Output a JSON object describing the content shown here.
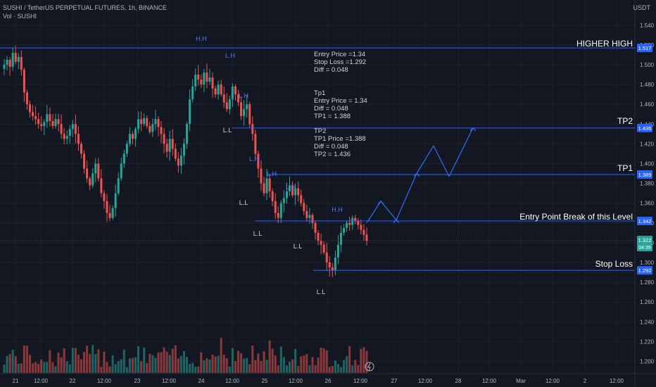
{
  "header": {
    "symbol_line": "SUSHI / TetherUS PERPETUAL FUTURES, 1h, BINANCE",
    "volume_label": "Vol · SUSHI"
  },
  "axis": {
    "unit": "USDT",
    "y_ticks": [
      "1.540",
      "1.520",
      "1.500",
      "1.480",
      "1.460",
      "1.440",
      "1.420",
      "1.400",
      "1.380",
      "1.360",
      "1.340",
      "1.320",
      "1.300",
      "1.280",
      "1.260",
      "1.240",
      "1.220",
      "1.200"
    ],
    "x_ticks": [
      "21",
      "12:00",
      "22",
      "12:00",
      "23",
      "12:00",
      "24",
      "12:00",
      "25",
      "12:00",
      "26",
      "12:00",
      "27",
      "12:00",
      "28",
      "12:00",
      "Mar",
      "12:00",
      "2",
      "12:00"
    ]
  },
  "levels": {
    "higher_high": {
      "label": "HIGHER HIGH",
      "price_tag": "1.517"
    },
    "tp2": {
      "label": "TP2",
      "price_tag": "1.436"
    },
    "tp1": {
      "label": "TP1",
      "price_tag": "1.389"
    },
    "entry": {
      "label": "Entry Point Break of this Level",
      "price_tag": "1.342"
    },
    "stop": {
      "label": "Stop Loss",
      "price_tag": "1.292"
    },
    "current": {
      "price_tag": "1.322",
      "countdown": "04:39"
    }
  },
  "notes": {
    "block1": [
      "Entry Price =1.34",
      "Stop Loss =1.292",
      "Diff = 0.048"
    ],
    "block2": [
      "Tp1",
      "Entry Price = 1.34",
      "Diff =  0.048",
      "TP1 = 1.388"
    ],
    "block3": [
      "TP2",
      "TP1 Price =1.388",
      "Diff = 0.048",
      "TP2 = 1.436"
    ]
  },
  "swing_labels": [
    "H.H",
    "L.H",
    "L.H",
    "L.L",
    "L.H",
    "L.L",
    "L.H",
    "L.L",
    "L.H",
    "L.L",
    "H.H",
    "L.L"
  ],
  "colors": {
    "background": "#131722",
    "up": "#26a69a",
    "down": "#ef5350",
    "level_line": "#2962ff",
    "projection": "#2f6fff",
    "text": "#d1d4dc"
  },
  "chart_data": {
    "type": "candlestick",
    "title": "SUSHI / TetherUS PERPETUAL FUTURES, 1h, BINANCE",
    "ylim": [
      1.19,
      1.55
    ],
    "ohlc_price_path": [
      1.5,
      1.505,
      1.498,
      1.512,
      1.503,
      1.508,
      1.495,
      1.472,
      1.46,
      1.452,
      1.448,
      1.445,
      1.44,
      1.438,
      1.442,
      1.45,
      1.443,
      1.438,
      1.445,
      1.44,
      1.43,
      1.425,
      1.428,
      1.435,
      1.44,
      1.43,
      1.42,
      1.41,
      1.395,
      1.385,
      1.378,
      1.39,
      1.4,
      1.385,
      1.37,
      1.362,
      1.35,
      1.345,
      1.355,
      1.37,
      1.385,
      1.4,
      1.41,
      1.42,
      1.43,
      1.425,
      1.435,
      1.445,
      1.44,
      1.446,
      1.438,
      1.432,
      1.44,
      1.445,
      1.437,
      1.43,
      1.42,
      1.412,
      1.425,
      1.415,
      1.405,
      1.398,
      1.408,
      1.42,
      1.44,
      1.465,
      1.478,
      1.49,
      1.485,
      1.48,
      1.492,
      1.483,
      1.487,
      1.476,
      1.47,
      1.48,
      1.47,
      1.462,
      1.455,
      1.465,
      1.478,
      1.47,
      1.462,
      1.448,
      1.455,
      1.46,
      1.44,
      1.43,
      1.41,
      1.395,
      1.38,
      1.37,
      1.385,
      1.372,
      1.362,
      1.35,
      1.345,
      1.36,
      1.365,
      1.372,
      1.378,
      1.368,
      1.375,
      1.368,
      1.36,
      1.352,
      1.345,
      1.348,
      1.34,
      1.33,
      1.322,
      1.318,
      1.31,
      1.3,
      1.295,
      1.292,
      1.305,
      1.318,
      1.33,
      1.335,
      1.34,
      1.338,
      1.345,
      1.342,
      1.338,
      1.333,
      1.328,
      1.322
    ],
    "projection": [
      [
        1.34,
        1.362
      ],
      [
        1.362,
        1.343
      ],
      [
        1.343,
        1.39
      ],
      [
        1.39,
        1.418
      ],
      [
        1.418,
        1.387
      ],
      [
        1.387,
        1.436
      ]
    ]
  }
}
